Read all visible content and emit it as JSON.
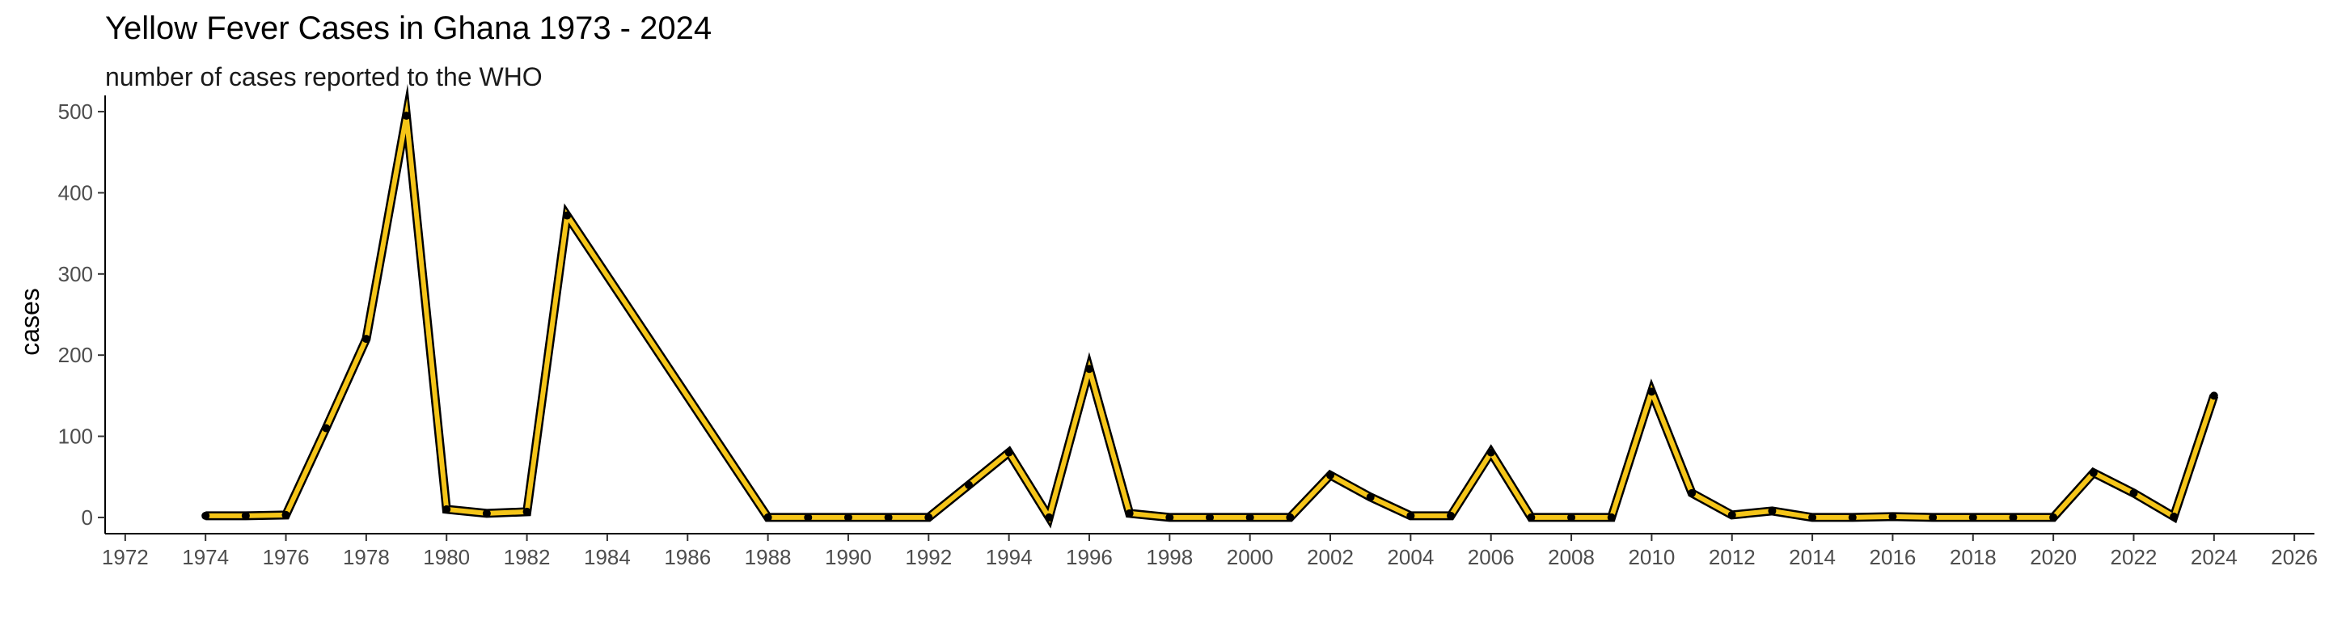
{
  "chart_data": {
    "type": "line",
    "title": "Yellow Fever Cases in Ghana 1973 - 2024",
    "subtitle": "number of cases reported to the WHO",
    "xlabel": "",
    "ylabel": "cases",
    "xlim": [
      1971.5,
      2026.5
    ],
    "ylim": [
      -20,
      520
    ],
    "x_ticks": [
      1972,
      1974,
      1976,
      1978,
      1980,
      1982,
      1984,
      1986,
      1988,
      1990,
      1992,
      1994,
      1996,
      1998,
      2000,
      2002,
      2004,
      2006,
      2008,
      2010,
      2012,
      2014,
      2016,
      2018,
      2020,
      2022,
      2024,
      2026
    ],
    "y_ticks": [
      0,
      100,
      200,
      300,
      400,
      500
    ],
    "grid": false,
    "line_color": "#F5C518",
    "outline_color": "#000000",
    "x": [
      1974,
      1975,
      1976,
      1977,
      1978,
      1979,
      1980,
      1981,
      1982,
      1983,
      1988,
      1989,
      1990,
      1991,
      1992,
      1993,
      1994,
      1995,
      1996,
      1997,
      1998,
      1999,
      2000,
      2001,
      2002,
      2003,
      2004,
      2005,
      2006,
      2007,
      2008,
      2009,
      2010,
      2011,
      2012,
      2013,
      2014,
      2015,
      2016,
      2017,
      2018,
      2019,
      2020,
      2021,
      2022,
      2023,
      2024
    ],
    "y": [
      2,
      2,
      3,
      110,
      220,
      495,
      10,
      5,
      7,
      372,
      0,
      0,
      0,
      0,
      0,
      40,
      80,
      0,
      183,
      5,
      0,
      0,
      0,
      0,
      52,
      25,
      2,
      2,
      80,
      0,
      0,
      0,
      155,
      30,
      3,
      8,
      0,
      0,
      1,
      0,
      0,
      0,
      0,
      55,
      30,
      1,
      150
    ]
  }
}
